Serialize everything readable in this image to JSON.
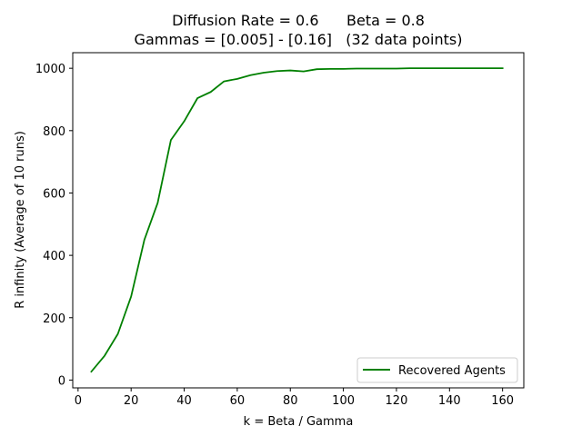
{
  "chart_data": {
    "type": "line",
    "title_line1": "Diffusion Rate = 0.6      Beta = 0.8",
    "title_line2": "Gammas = [0.005] - [0.16]   (32 data points)",
    "xlabel": "k = Beta / Gamma",
    "ylabel": "R infinity (Average of 10 runs)",
    "xlim": [
      -2,
      168
    ],
    "ylim": [
      -25,
      1050
    ],
    "xticks": [
      0,
      20,
      40,
      60,
      80,
      100,
      120,
      140,
      160
    ],
    "yticks": [
      0,
      200,
      400,
      600,
      800,
      1000
    ],
    "legend_position": "lower-right",
    "series": [
      {
        "name": "Recovered Agents",
        "color": "#008000",
        "x": [
          5,
          10,
          15,
          20,
          25,
          30,
          35,
          40,
          45,
          50,
          55,
          60,
          65,
          70,
          75,
          80,
          85,
          90,
          95,
          100,
          105,
          110,
          115,
          120,
          125,
          130,
          135,
          140,
          145,
          150,
          155,
          160
        ],
        "y": [
          27,
          78,
          148,
          268,
          450,
          568,
          770,
          830,
          904,
          924,
          958,
          966,
          978,
          986,
          991,
          993,
          990,
          997,
          998,
          998,
          999,
          999,
          999,
          999,
          1000,
          1000,
          1000,
          1000,
          1000,
          1000,
          1000,
          1000
        ]
      }
    ]
  }
}
